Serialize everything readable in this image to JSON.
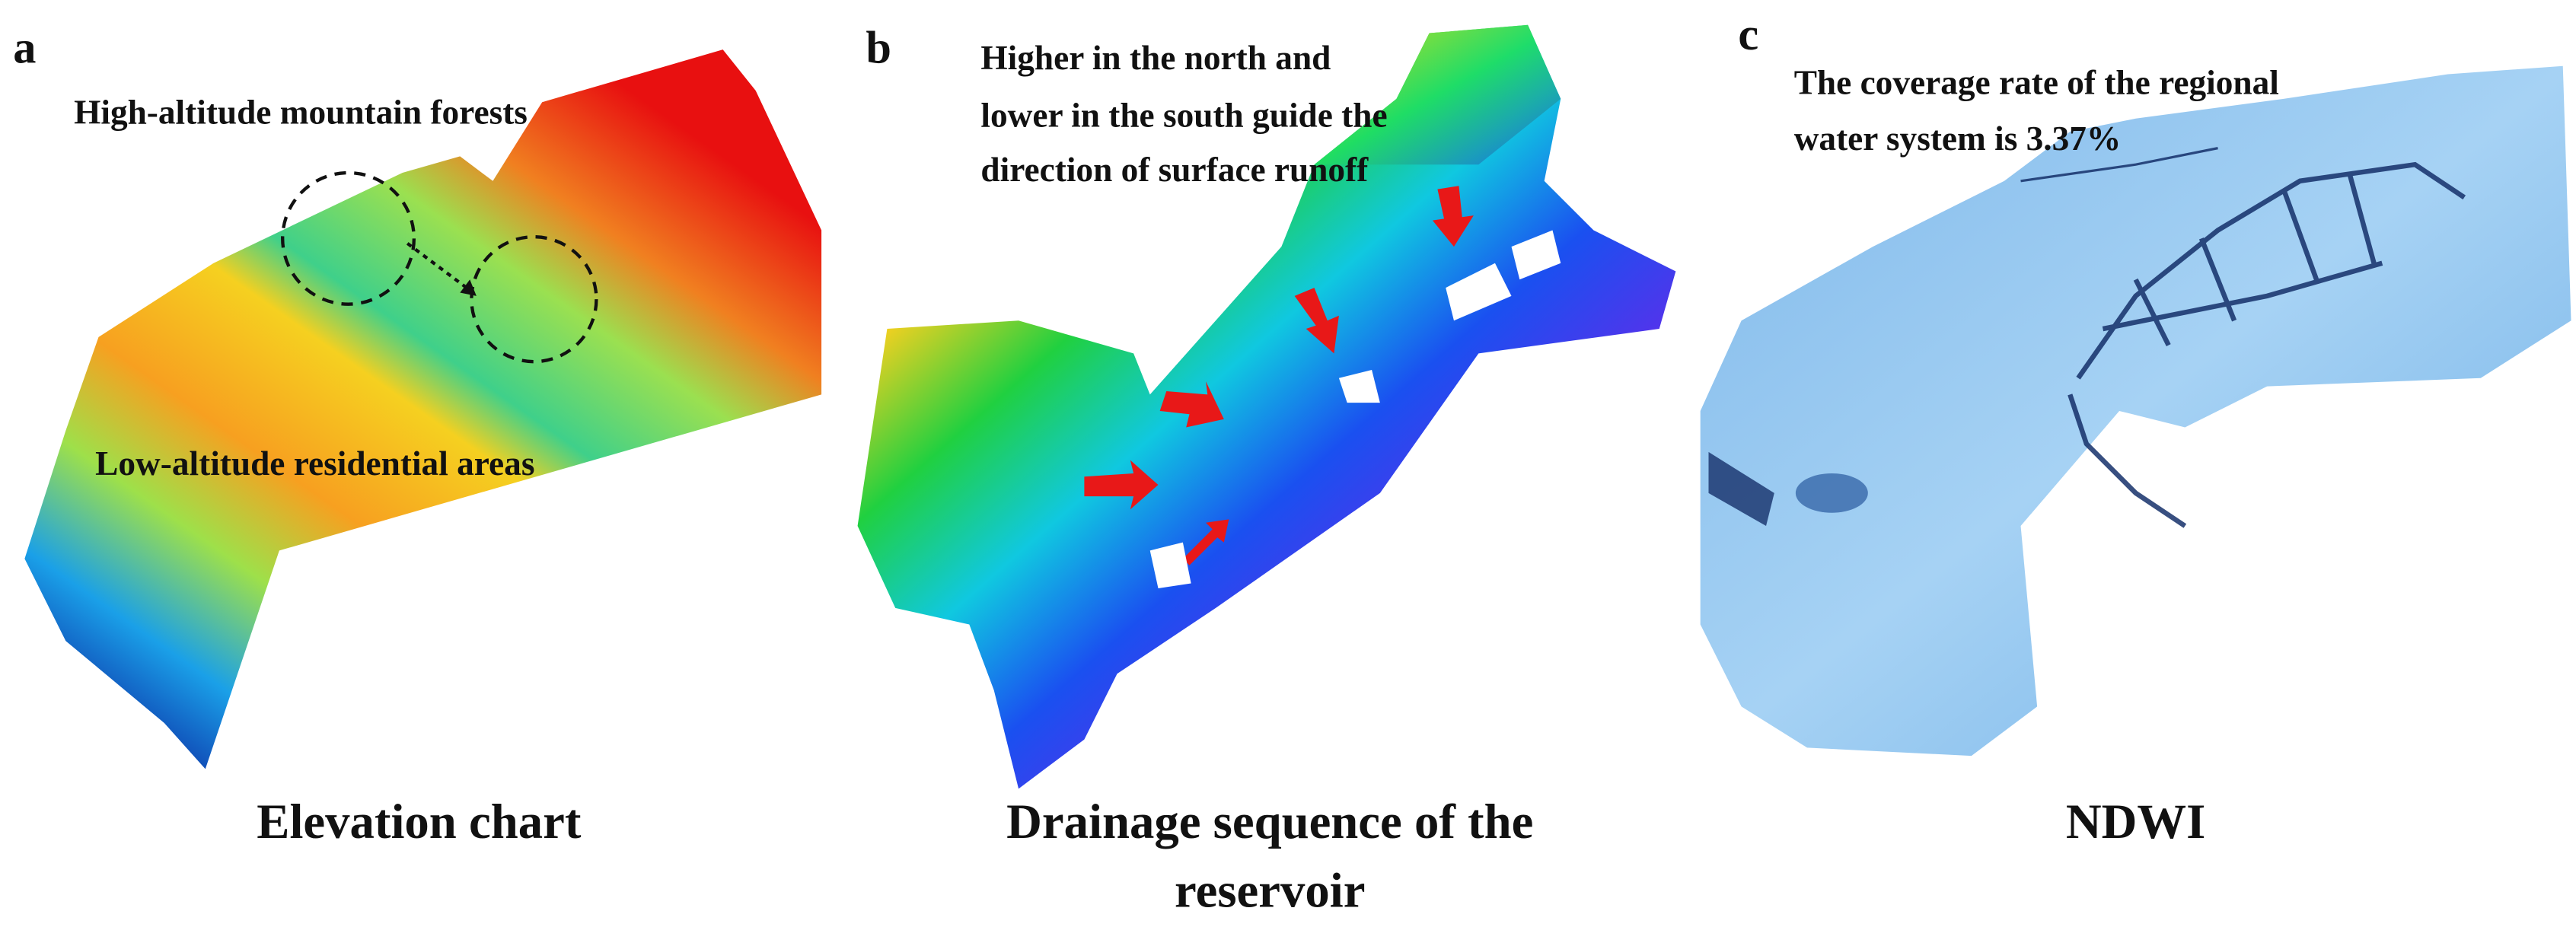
{
  "panels": [
    {
      "label": "a",
      "annotations": [
        "High-altitude mountain forests",
        "Low-altitude residential areas"
      ],
      "caption": [
        "Elevation chart"
      ]
    },
    {
      "label": "b",
      "annotations": [
        "Higher in the north and",
        "lower in the south guide the",
        "direction of surface runoff"
      ],
      "caption": [
        "Drainage sequence of the",
        "reservoir"
      ]
    },
    {
      "label": "c",
      "annotations": [
        "The coverage rate of the regional",
        "water system is 3.37%"
      ],
      "caption": [
        "NDWI"
      ]
    }
  ]
}
